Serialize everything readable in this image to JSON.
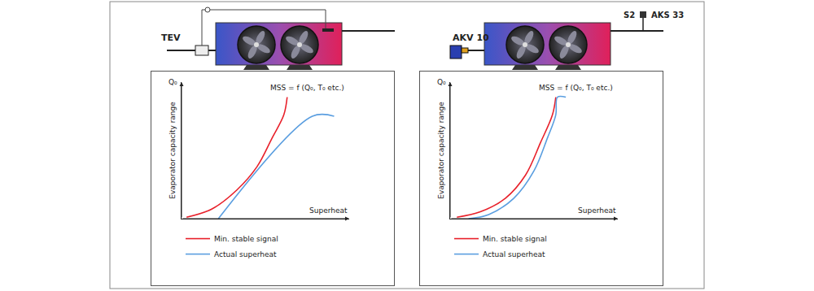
{
  "diagram": {
    "left": {
      "labels": [
        "TEV"
      ]
    },
    "right": {
      "labels": [
        "AKV 10",
        "S2",
        "AKS 33"
      ]
    }
  },
  "chart_data": [
    {
      "type": "line",
      "x_label": "Superheat",
      "y_label": "Evaporator capacity range",
      "annotations": [
        "MSS = f (Q₀, T₀ etc.)",
        "Q₀"
      ],
      "xlim": [
        0,
        10
      ],
      "ylim": [
        0,
        10
      ],
      "xticks": [],
      "yticks": [],
      "tick_labels": false,
      "grid": false,
      "legend": "bottom",
      "series": [
        {
          "name": "Min. stable signal",
          "color": "#e8202a",
          "x": [
            0.3,
            1.8,
            3.3,
            4.5,
            5.4,
            6.1,
            6.3
          ],
          "values": [
            0.1,
            0.7,
            2.1,
            3.8,
            5.9,
            7.6,
            8.9
          ]
        },
        {
          "name": "Actual superheat",
          "color": "#5a9ee0",
          "x": [
            2.2,
            7.8,
            9.1
          ],
          "values": [
            0,
            7.5,
            7.5
          ]
        }
      ]
    },
    {
      "type": "line",
      "x_label": "Superheat",
      "y_label": "Evaporator capacity range",
      "annotations": [
        "MSS = f (Q₀, T₀ etc.)",
        "Q₀"
      ],
      "xlim": [
        0,
        10
      ],
      "ylim": [
        0,
        10
      ],
      "xticks": [],
      "yticks": [],
      "tick_labels": false,
      "grid": false,
      "legend": "bottom",
      "series": [
        {
          "name": "Min. stable signal",
          "color": "#e8202a",
          "x": [
            0.4,
            1.8,
            3.3,
            4.5,
            5.4,
            6.1,
            6.3
          ],
          "values": [
            0.1,
            0.5,
            1.5,
            3.2,
            5.6,
            7.6,
            8.9
          ]
        },
        {
          "name": "Actual superheat",
          "color": "#5a9ee0",
          "x": [
            1.1,
            2.3,
            3.8,
            5.0,
            5.8,
            6.3,
            6.4,
            6.9
          ],
          "values": [
            0,
            0.3,
            1.5,
            3.5,
            5.9,
            7.6,
            8.9,
            8.9
          ]
        }
      ]
    }
  ]
}
